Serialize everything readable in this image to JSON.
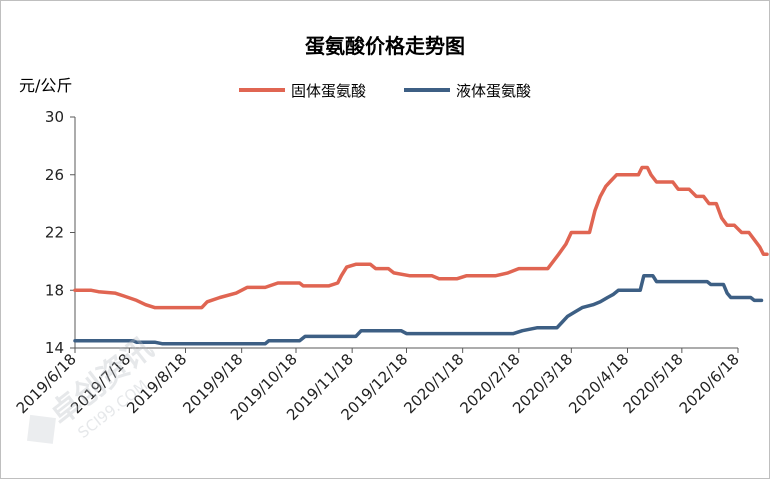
{
  "chart_data": {
    "type": "line",
    "title": "蛋氨酸价格走势图",
    "ylabel": "元/公斤",
    "ylim": [
      14,
      30
    ],
    "yticks": [
      14,
      18,
      22,
      26,
      30
    ],
    "xlim": [
      "2019/6/18",
      "2020/6/18"
    ],
    "xticks": [
      "2019/6/18",
      "2019/7/18",
      "2019/8/18",
      "2019/9/18",
      "2019/10/18",
      "2019/11/18",
      "2019/12/18",
      "2020/1/18",
      "2020/2/18",
      "2020/3/18",
      "2020/4/18",
      "2020/5/18",
      "2020/6/18"
    ],
    "legend_position": "top",
    "grid": false,
    "series": [
      {
        "name": "固体蛋氨酸",
        "color": "#e06552",
        "points": [
          [
            "2019-06-18",
            18.0
          ],
          [
            "2019-06-27",
            18.0
          ],
          [
            "2019-07-01",
            17.9
          ],
          [
            "2019-07-10",
            17.8
          ],
          [
            "2019-07-15",
            17.6
          ],
          [
            "2019-07-22",
            17.3
          ],
          [
            "2019-07-27",
            17.0
          ],
          [
            "2019-08-01",
            16.8
          ],
          [
            "2019-08-15",
            16.8
          ],
          [
            "2019-08-27",
            16.8
          ],
          [
            "2019-08-30",
            17.2
          ],
          [
            "2019-09-06",
            17.5
          ],
          [
            "2019-09-15",
            17.8
          ],
          [
            "2019-09-21",
            18.2
          ],
          [
            "2019-10-01",
            18.2
          ],
          [
            "2019-10-08",
            18.5
          ],
          [
            "2019-10-20",
            18.5
          ],
          [
            "2019-10-22",
            18.3
          ],
          [
            "2019-11-05",
            18.3
          ],
          [
            "2019-11-10",
            18.5
          ],
          [
            "2019-11-12",
            19.0
          ],
          [
            "2019-11-15",
            19.6
          ],
          [
            "2019-11-20",
            19.8
          ],
          [
            "2019-11-28",
            19.8
          ],
          [
            "2019-12-01",
            19.5
          ],
          [
            "2019-12-08",
            19.5
          ],
          [
            "2019-12-11",
            19.2
          ],
          [
            "2019-12-20",
            19.0
          ],
          [
            "2020-01-01",
            19.0
          ],
          [
            "2020-01-05",
            18.8
          ],
          [
            "2020-01-15",
            18.8
          ],
          [
            "2020-01-20",
            19.0
          ],
          [
            "2020-02-05",
            19.0
          ],
          [
            "2020-02-12",
            19.2
          ],
          [
            "2020-02-18",
            19.5
          ],
          [
            "2020-02-28",
            19.5
          ],
          [
            "2020-03-05",
            19.5
          ],
          [
            "2020-03-08",
            20.0
          ],
          [
            "2020-03-11",
            20.5
          ],
          [
            "2020-03-15",
            21.2
          ],
          [
            "2020-03-18",
            22.0
          ],
          [
            "2020-03-25",
            22.0
          ],
          [
            "2020-03-28",
            22.0
          ],
          [
            "2020-03-31",
            23.5
          ],
          [
            "2020-04-03",
            24.5
          ],
          [
            "2020-04-06",
            25.2
          ],
          [
            "2020-04-09",
            25.6
          ],
          [
            "2020-04-12",
            26.0
          ],
          [
            "2020-04-20",
            26.0
          ],
          [
            "2020-04-24",
            26.0
          ],
          [
            "2020-04-26",
            26.5
          ],
          [
            "2020-04-29",
            26.5
          ],
          [
            "2020-05-01",
            26.0
          ],
          [
            "2020-05-04",
            25.5
          ],
          [
            "2020-05-09",
            25.5
          ],
          [
            "2020-05-13",
            25.5
          ],
          [
            "2020-05-16",
            25.0
          ],
          [
            "2020-05-22",
            25.0
          ],
          [
            "2020-05-26",
            24.5
          ],
          [
            "2020-05-30",
            24.5
          ],
          [
            "2020-06-02",
            24.0
          ],
          [
            "2020-06-06",
            24.0
          ],
          [
            "2020-06-09",
            23.0
          ],
          [
            "2020-06-12",
            22.5
          ],
          [
            "2020-06-16",
            22.5
          ],
          [
            "2020-06-20",
            22.0
          ],
          [
            "2020-06-24",
            22.0
          ],
          [
            "2020-06-27",
            21.5
          ],
          [
            "2020-06-30",
            21.0
          ],
          [
            "2020-07-02",
            20.5
          ],
          [
            "2020-07-04",
            20.5
          ]
        ]
      },
      {
        "name": "液体蛋氨酸",
        "color": "#3d5f84",
        "points": [
          [
            "2019-06-18",
            14.5
          ],
          [
            "2019-07-20",
            14.5
          ],
          [
            "2019-07-22",
            14.4
          ],
          [
            "2019-08-01",
            14.4
          ],
          [
            "2019-08-05",
            14.3
          ],
          [
            "2019-09-20",
            14.3
          ],
          [
            "2019-10-01",
            14.3
          ],
          [
            "2019-10-03",
            14.5
          ],
          [
            "2019-10-20",
            14.5
          ],
          [
            "2019-10-23",
            14.8
          ],
          [
            "2019-11-20",
            14.8
          ],
          [
            "2019-11-23",
            15.2
          ],
          [
            "2019-12-15",
            15.2
          ],
          [
            "2019-12-18",
            15.0
          ],
          [
            "2020-01-18",
            15.0
          ],
          [
            "2020-02-15",
            15.0
          ],
          [
            "2020-02-20",
            15.2
          ],
          [
            "2020-02-28",
            15.4
          ],
          [
            "2020-03-10",
            15.4
          ],
          [
            "2020-03-13",
            15.8
          ],
          [
            "2020-03-16",
            16.2
          ],
          [
            "2020-03-20",
            16.5
          ],
          [
            "2020-03-24",
            16.8
          ],
          [
            "2020-03-30",
            17.0
          ],
          [
            "2020-04-03",
            17.2
          ],
          [
            "2020-04-07",
            17.5
          ],
          [
            "2020-04-10",
            17.7
          ],
          [
            "2020-04-13",
            18.0
          ],
          [
            "2020-04-25",
            18.0
          ],
          [
            "2020-04-27",
            19.0
          ],
          [
            "2020-05-02",
            19.0
          ],
          [
            "2020-05-04",
            18.6
          ],
          [
            "2020-05-20",
            18.6
          ],
          [
            "2020-06-01",
            18.6
          ],
          [
            "2020-06-03",
            18.4
          ],
          [
            "2020-06-10",
            18.4
          ],
          [
            "2020-06-12",
            17.8
          ],
          [
            "2020-06-14",
            17.5
          ],
          [
            "2020-06-25",
            17.5
          ],
          [
            "2020-06-27",
            17.3
          ],
          [
            "2020-07-01",
            17.3
          ]
        ]
      }
    ]
  },
  "watermark": "卓创资讯 SCI99.COM"
}
